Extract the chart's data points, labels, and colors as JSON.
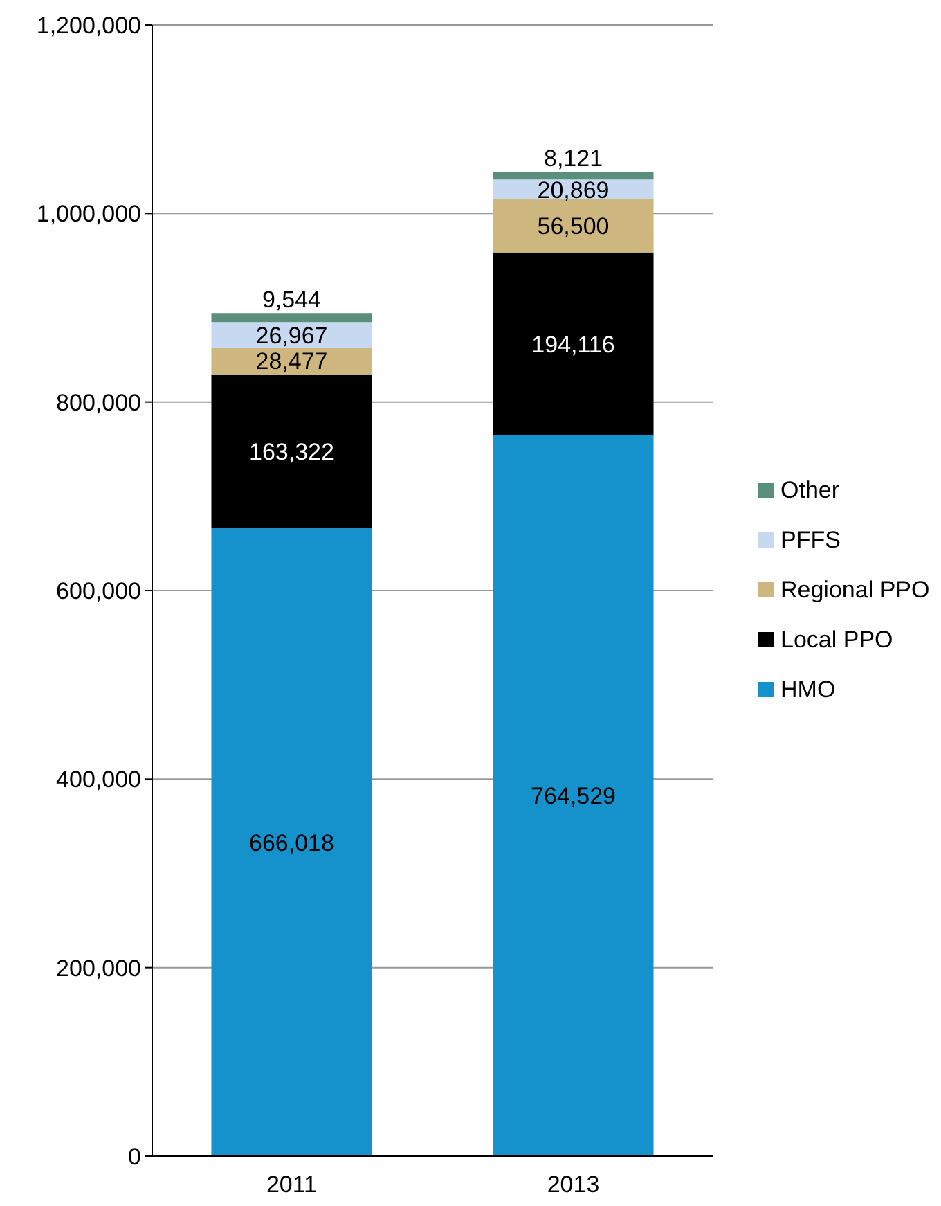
{
  "chart_data": {
    "type": "bar",
    "stacked": true,
    "categories": [
      "2011",
      "2013"
    ],
    "series": [
      {
        "name": "HMO",
        "color": "#1591cc",
        "values": [
          666018,
          764529
        ],
        "value_labels": [
          "666,018",
          "764,529"
        ]
      },
      {
        "name": "Local PPO",
        "color": "#000000",
        "values": [
          163322,
          194116
        ],
        "value_labels": [
          "163,322",
          "194,116"
        ]
      },
      {
        "name": "Regional PPO",
        "color": "#cdb77e",
        "values": [
          28477,
          56500
        ],
        "value_labels": [
          "28,477",
          "56,500"
        ]
      },
      {
        "name": "PFFS",
        "color": "#c6d9f1",
        "values": [
          26967,
          20869
        ],
        "value_labels": [
          "26,967",
          "20,869"
        ]
      },
      {
        "name": "Other",
        "color": "#5a8f7b",
        "values": [
          9544,
          8121
        ],
        "value_labels": [
          "9,544",
          "8,121"
        ]
      }
    ],
    "ylim": [
      0,
      1200000
    ],
    "yticks": [
      {
        "value": 0,
        "label": "0"
      },
      {
        "value": 200000,
        "label": "200,000"
      },
      {
        "value": 400000,
        "label": "400,000"
      },
      {
        "value": 600000,
        "label": "600,000"
      },
      {
        "value": 800000,
        "label": "800,000"
      },
      {
        "value": 1000000,
        "label": "1,000,000"
      },
      {
        "value": 1200000,
        "label": "1,200,000"
      }
    ],
    "grid": "y",
    "legend": "right"
  }
}
